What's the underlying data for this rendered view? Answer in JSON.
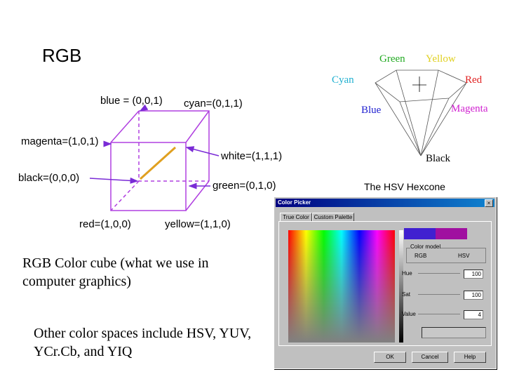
{
  "title": "RGB",
  "cube": {
    "labels": [
      "blue = (0,0,1)",
      "cyan=(0,1,1)",
      "magenta=(1,0,1)",
      "white=(1,1,1)",
      "black=(0,0,0)",
      "green=(0,1,0)",
      "red=(1,0,0)",
      "yellow=(1,1,0)"
    ]
  },
  "hexcone": {
    "labels": [
      "Green",
      "Yellow",
      "Cyan",
      "Red",
      "Blue",
      "Magenta",
      "Black"
    ],
    "caption": "The HSV Hexcone"
  },
  "captions": [
    "RGB Color cube (what we use in computer graphics)",
    "Other color spaces include HSV, YUV, YCr.Cb, and YIQ"
  ],
  "color_picker": {
    "title": "Color Picker",
    "tabs": [
      "True Color",
      "Custom Palette"
    ],
    "group": "Color model",
    "models": [
      "RGB",
      "HSV"
    ],
    "fields": [
      {
        "label": "Hue",
        "value": "100"
      },
      {
        "label": "Sat",
        "value": "100"
      },
      {
        "label": "Value",
        "value": "4"
      }
    ],
    "buttons": [
      "OK",
      "Cancel",
      "Help"
    ]
  }
}
